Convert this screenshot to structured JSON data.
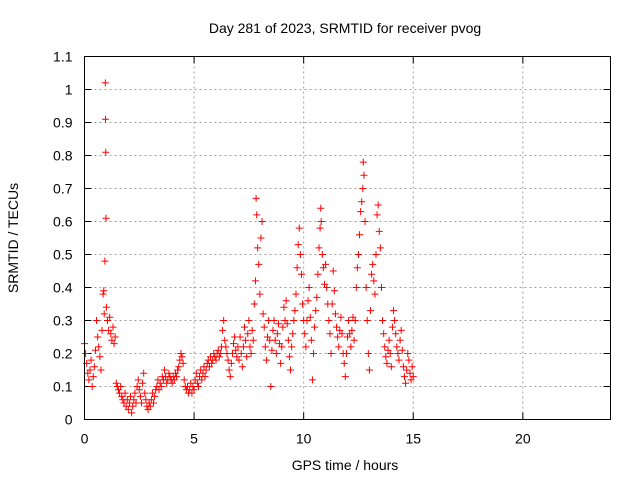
{
  "chart_data": {
    "type": "scatter",
    "title": "Day 281 of 2023, SRMTID for receiver pvog",
    "xlabel": "GPS time / hours",
    "ylabel": "SRMTID / TECUs",
    "xlim": [
      0,
      24
    ],
    "ylim": [
      0,
      1.1
    ],
    "xticks": [
      0,
      5,
      10,
      15,
      20
    ],
    "xtick_labels": [
      "0",
      "5",
      "10",
      "15",
      "20"
    ],
    "yticks": [
      0,
      0.1,
      0.2,
      0.3,
      0.4,
      0.5,
      0.6,
      0.7,
      0.8,
      0.9,
      1,
      1.1
    ],
    "ytick_labels": [
      "0",
      "0.1",
      "0.2",
      "0.3",
      "0.4",
      "0.5",
      "0.6",
      "0.7",
      "0.8",
      "0.9",
      "1",
      "1.1"
    ],
    "grid": true,
    "marker": "+",
    "color": "#ff0000",
    "series": [
      {
        "name": "SRMTID",
        "points": [
          [
            0.0,
            0.23
          ],
          [
            0.05,
            0.2
          ],
          [
            0.1,
            0.17
          ],
          [
            0.15,
            0.14
          ],
          [
            0.2,
            0.12
          ],
          [
            0.25,
            0.15
          ],
          [
            0.3,
            0.18
          ],
          [
            0.35,
            0.1
          ],
          [
            0.4,
            0.13
          ],
          [
            0.45,
            0.16
          ],
          [
            0.5,
            0.21
          ],
          [
            0.55,
            0.3
          ],
          [
            0.6,
            0.25
          ],
          [
            0.65,
            0.22
          ],
          [
            0.7,
            0.19
          ],
          [
            0.75,
            0.15
          ],
          [
            0.8,
            0.27
          ],
          [
            0.85,
            0.38
          ],
          [
            0.88,
            0.39
          ],
          [
            0.9,
            0.32
          ],
          [
            0.93,
            0.48
          ],
          [
            0.95,
            1.02
          ],
          [
            0.96,
            0.91
          ],
          [
            0.97,
            0.81
          ],
          [
            0.98,
            0.61
          ],
          [
            1.0,
            0.34
          ],
          [
            1.05,
            0.3
          ],
          [
            1.1,
            0.27
          ],
          [
            1.15,
            0.31
          ],
          [
            1.2,
            0.26
          ],
          [
            1.25,
            0.24
          ],
          [
            1.3,
            0.28
          ],
          [
            1.35,
            0.23
          ],
          [
            1.4,
            0.25
          ],
          [
            1.45,
            0.11
          ],
          [
            1.5,
            0.1
          ],
          [
            1.55,
            0.09
          ],
          [
            1.6,
            0.08
          ],
          [
            1.65,
            0.1
          ],
          [
            1.7,
            0.07
          ],
          [
            1.75,
            0.06
          ],
          [
            1.8,
            0.05
          ],
          [
            1.85,
            0.08
          ],
          [
            1.9,
            0.04
          ],
          [
            1.95,
            0.06
          ],
          [
            2.0,
            0.03
          ],
          [
            2.05,
            0.05
          ],
          [
            2.1,
            0.07
          ],
          [
            2.15,
            0.02
          ],
          [
            2.2,
            0.04
          ],
          [
            2.25,
            0.06
          ],
          [
            2.3,
            0.08
          ],
          [
            2.35,
            0.05
          ],
          [
            2.4,
            0.1
          ],
          [
            2.45,
            0.12
          ],
          [
            2.5,
            0.09
          ],
          [
            2.55,
            0.07
          ],
          [
            2.6,
            0.05
          ],
          [
            2.65,
            0.11
          ],
          [
            2.7,
            0.14
          ],
          [
            2.75,
            0.08
          ],
          [
            2.8,
            0.06
          ],
          [
            2.85,
            0.04
          ],
          [
            2.9,
            0.03
          ],
          [
            2.95,
            0.05
          ],
          [
            3.0,
            0.04
          ],
          [
            3.05,
            0.06
          ],
          [
            3.1,
            0.08
          ],
          [
            3.15,
            0.05
          ],
          [
            3.2,
            0.07
          ],
          [
            3.25,
            0.09
          ],
          [
            3.3,
            0.1
          ],
          [
            3.35,
            0.12
          ],
          [
            3.4,
            0.09
          ],
          [
            3.45,
            0.11
          ],
          [
            3.5,
            0.1
          ],
          [
            3.55,
            0.13
          ],
          [
            3.6,
            0.12
          ],
          [
            3.65,
            0.15
          ],
          [
            3.7,
            0.13
          ],
          [
            3.75,
            0.11
          ],
          [
            3.8,
            0.12
          ],
          [
            3.85,
            0.14
          ],
          [
            3.9,
            0.13
          ],
          [
            3.95,
            0.12
          ],
          [
            4.0,
            0.11
          ],
          [
            4.05,
            0.13
          ],
          [
            4.1,
            0.12
          ],
          [
            4.15,
            0.14
          ],
          [
            4.2,
            0.13
          ],
          [
            4.25,
            0.15
          ],
          [
            4.3,
            0.16
          ],
          [
            4.35,
            0.18
          ],
          [
            4.4,
            0.2
          ],
          [
            4.45,
            0.19
          ],
          [
            4.5,
            0.17
          ],
          [
            4.55,
            0.12
          ],
          [
            4.6,
            0.1
          ],
          [
            4.65,
            0.09
          ],
          [
            4.7,
            0.1
          ],
          [
            4.75,
            0.08
          ],
          [
            4.8,
            0.09
          ],
          [
            4.85,
            0.11
          ],
          [
            4.9,
            0.08
          ],
          [
            4.95,
            0.1
          ],
          [
            5.0,
            0.09
          ],
          [
            5.05,
            0.12
          ],
          [
            5.1,
            0.14
          ],
          [
            5.15,
            0.11
          ],
          [
            5.2,
            0.1
          ],
          [
            5.25,
            0.13
          ],
          [
            5.3,
            0.15
          ],
          [
            5.35,
            0.12
          ],
          [
            5.4,
            0.14
          ],
          [
            5.45,
            0.16
          ],
          [
            5.5,
            0.13
          ],
          [
            5.55,
            0.15
          ],
          [
            5.6,
            0.17
          ],
          [
            5.65,
            0.18
          ],
          [
            5.7,
            0.16
          ],
          [
            5.75,
            0.19
          ],
          [
            5.8,
            0.17
          ],
          [
            5.85,
            0.18
          ],
          [
            5.9,
            0.2
          ],
          [
            5.95,
            0.19
          ],
          [
            6.0,
            0.18
          ],
          [
            6.05,
            0.2
          ],
          [
            6.1,
            0.21
          ],
          [
            6.15,
            0.19
          ],
          [
            6.2,
            0.2
          ],
          [
            6.25,
            0.22
          ],
          [
            6.3,
            0.27
          ],
          [
            6.35,
            0.3
          ],
          [
            6.4,
            0.24
          ],
          [
            6.45,
            0.22
          ],
          [
            6.5,
            0.2
          ],
          [
            6.55,
            0.18
          ],
          [
            6.6,
            0.15
          ],
          [
            6.65,
            0.13
          ],
          [
            6.7,
            0.17
          ],
          [
            6.75,
            0.2
          ],
          [
            6.8,
            0.23
          ],
          [
            6.85,
            0.25
          ],
          [
            6.9,
            0.21
          ],
          [
            6.95,
            0.19
          ],
          [
            7.0,
            0.22
          ],
          [
            7.05,
            0.18
          ],
          [
            7.1,
            0.25
          ],
          [
            7.15,
            0.2
          ],
          [
            7.2,
            0.16
          ],
          [
            7.25,
            0.22
          ],
          [
            7.3,
            0.28
          ],
          [
            7.35,
            0.24
          ],
          [
            7.4,
            0.19
          ],
          [
            7.45,
            0.26
          ],
          [
            7.5,
            0.3
          ],
          [
            7.55,
            0.22
          ],
          [
            7.6,
            0.2
          ],
          [
            7.65,
            0.27
          ],
          [
            7.7,
            0.24
          ],
          [
            7.75,
            0.35
          ],
          [
            7.8,
            0.42
          ],
          [
            7.83,
            0.67
          ],
          [
            7.86,
            0.62
          ],
          [
            7.9,
            0.52
          ],
          [
            7.95,
            0.47
          ],
          [
            8.0,
            0.38
          ],
          [
            8.05,
            0.55
          ],
          [
            8.1,
            0.6
          ],
          [
            8.15,
            0.32
          ],
          [
            8.2,
            0.28
          ],
          [
            8.25,
            0.22
          ],
          [
            8.3,
            0.18
          ],
          [
            8.35,
            0.25
          ],
          [
            8.4,
            0.3
          ],
          [
            8.45,
            0.24
          ],
          [
            8.5,
            0.1
          ],
          [
            8.55,
            0.21
          ],
          [
            8.6,
            0.27
          ],
          [
            8.65,
            0.3
          ],
          [
            8.7,
            0.24
          ],
          [
            8.75,
            0.2
          ],
          [
            8.8,
            0.26
          ],
          [
            8.85,
            0.29
          ],
          [
            8.9,
            0.23
          ],
          [
            8.95,
            0.17
          ],
          [
            9.0,
            0.22
          ],
          [
            9.05,
            0.28
          ],
          [
            9.1,
            0.34
          ],
          [
            9.15,
            0.3
          ],
          [
            9.2,
            0.36
          ],
          [
            9.25,
            0.29
          ],
          [
            9.3,
            0.24
          ],
          [
            9.35,
            0.19
          ],
          [
            9.4,
            0.15
          ],
          [
            9.45,
            0.22
          ],
          [
            9.5,
            0.26
          ],
          [
            9.55,
            0.3
          ],
          [
            9.6,
            0.33
          ],
          [
            9.65,
            0.38
          ],
          [
            9.7,
            0.46
          ],
          [
            9.75,
            0.53
          ],
          [
            9.8,
            0.58
          ],
          [
            9.85,
            0.5
          ],
          [
            9.9,
            0.44
          ],
          [
            9.95,
            0.35
          ],
          [
            10.0,
            0.3
          ],
          [
            10.05,
            0.26
          ],
          [
            10.1,
            0.22
          ],
          [
            10.15,
            0.3
          ],
          [
            10.2,
            0.36
          ],
          [
            10.25,
            0.4
          ],
          [
            10.3,
            0.31
          ],
          [
            10.35,
            0.24
          ],
          [
            10.4,
            0.12
          ],
          [
            10.45,
            0.2
          ],
          [
            10.5,
            0.28
          ],
          [
            10.55,
            0.33
          ],
          [
            10.6,
            0.37
          ],
          [
            10.65,
            0.44
          ],
          [
            10.7,
            0.52
          ],
          [
            10.75,
            0.58
          ],
          [
            10.78,
            0.64
          ],
          [
            10.8,
            0.6
          ],
          [
            10.85,
            0.5
          ],
          [
            10.9,
            0.46
          ],
          [
            10.95,
            0.41
          ],
          [
            11.0,
            0.47
          ],
          [
            11.05,
            0.4
          ],
          [
            11.1,
            0.35
          ],
          [
            11.15,
            0.3
          ],
          [
            11.2,
            0.26
          ],
          [
            11.25,
            0.2
          ],
          [
            11.3,
            0.35
          ],
          [
            11.35,
            0.45
          ],
          [
            11.4,
            0.39
          ],
          [
            11.45,
            0.32
          ],
          [
            11.5,
            0.28
          ],
          [
            11.55,
            0.25
          ],
          [
            11.6,
            0.22
          ],
          [
            11.65,
            0.27
          ],
          [
            11.7,
            0.31
          ],
          [
            11.75,
            0.26
          ],
          [
            11.8,
            0.2
          ],
          [
            11.85,
            0.17
          ],
          [
            11.9,
            0.13
          ],
          [
            11.95,
            0.2
          ],
          [
            12.0,
            0.25
          ],
          [
            12.05,
            0.3
          ],
          [
            12.1,
            0.26
          ],
          [
            12.15,
            0.22
          ],
          [
            12.2,
            0.27
          ],
          [
            12.25,
            0.31
          ],
          [
            12.3,
            0.24
          ],
          [
            12.35,
            0.3
          ],
          [
            12.4,
            0.4
          ],
          [
            12.45,
            0.46
          ],
          [
            12.5,
            0.5
          ],
          [
            12.55,
            0.56
          ],
          [
            12.6,
            0.63
          ],
          [
            12.65,
            0.66
          ],
          [
            12.7,
            0.7
          ],
          [
            12.72,
            0.78
          ],
          [
            12.75,
            0.74
          ],
          [
            12.8,
            0.6
          ],
          [
            12.85,
            0.4
          ],
          [
            12.9,
            0.3
          ],
          [
            12.95,
            0.2
          ],
          [
            13.0,
            0.15
          ],
          [
            13.05,
            0.33
          ],
          [
            13.1,
            0.44
          ],
          [
            13.15,
            0.47
          ],
          [
            13.2,
            0.42
          ],
          [
            13.25,
            0.38
          ],
          [
            13.3,
            0.5
          ],
          [
            13.35,
            0.62
          ],
          [
            13.4,
            0.65
          ],
          [
            13.45,
            0.57
          ],
          [
            13.5,
            0.52
          ],
          [
            13.55,
            0.4
          ],
          [
            13.6,
            0.3
          ],
          [
            13.65,
            0.26
          ],
          [
            13.7,
            0.22
          ],
          [
            13.75,
            0.19
          ],
          [
            13.8,
            0.17
          ],
          [
            13.85,
            0.21
          ],
          [
            13.9,
            0.24
          ],
          [
            13.95,
            0.2
          ],
          [
            14.0,
            0.16
          ],
          [
            14.05,
            0.28
          ],
          [
            14.1,
            0.33
          ],
          [
            14.15,
            0.3
          ],
          [
            14.2,
            0.26
          ],
          [
            14.25,
            0.22
          ],
          [
            14.3,
            0.2
          ],
          [
            14.35,
            0.18
          ],
          [
            14.4,
            0.24
          ],
          [
            14.45,
            0.27
          ],
          [
            14.5,
            0.21
          ],
          [
            14.55,
            0.16
          ],
          [
            14.6,
            0.13
          ],
          [
            14.65,
            0.11
          ],
          [
            14.7,
            0.15
          ],
          [
            14.75,
            0.2
          ],
          [
            14.8,
            0.18
          ],
          [
            14.85,
            0.14
          ],
          [
            14.9,
            0.12
          ],
          [
            14.95,
            0.16
          ],
          [
            15.0,
            0.13
          ]
        ]
      }
    ]
  }
}
